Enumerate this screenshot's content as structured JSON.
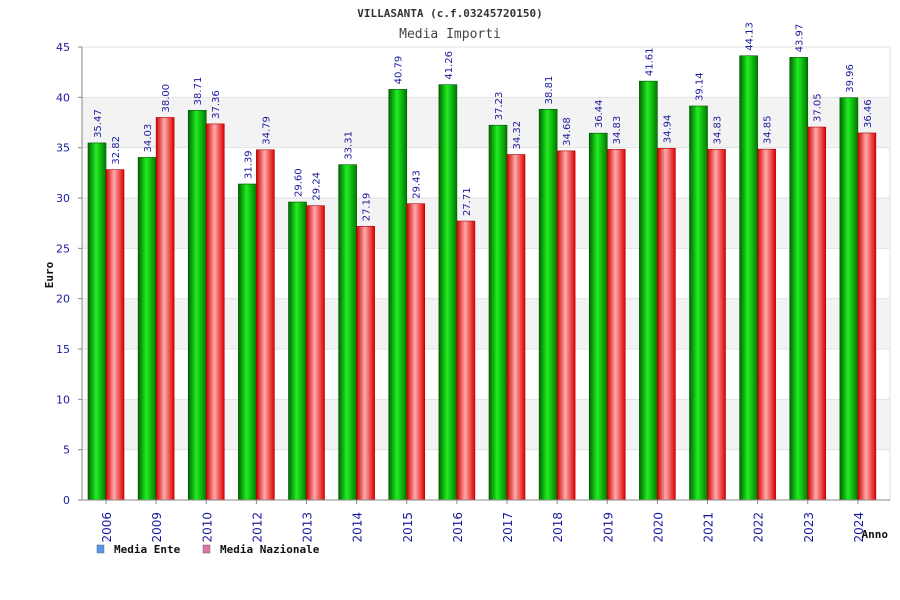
{
  "chart_data": {
    "type": "bar",
    "title": "VILLASANTA (c.f.03245720150)",
    "subtitle": "Media Importi",
    "xlabel": "Anno",
    "ylabel": "Euro",
    "ylim": [
      0,
      45
    ],
    "yticks": [
      "0",
      "5",
      "10",
      "15",
      "20",
      "25",
      "30",
      "35",
      "40",
      "45"
    ],
    "categories": [
      "2006",
      "2009",
      "2010",
      "2012",
      "2013",
      "2014",
      "2015",
      "2016",
      "2017",
      "2018",
      "2019",
      "2020",
      "2021",
      "2022",
      "2023",
      "2024"
    ],
    "series": [
      {
        "name": "Media Ente",
        "color": "#00aa00",
        "values": [
          35.47,
          34.03,
          38.71,
          31.39,
          29.6,
          33.31,
          40.79,
          41.26,
          37.23,
          38.81,
          36.44,
          41.61,
          39.14,
          44.13,
          43.97,
          39.96
        ],
        "labels": [
          "35.47",
          "34.03",
          "38.71",
          "31.39",
          "29.60",
          "33.31",
          "40.79",
          "41.26",
          "37.23",
          "38.81",
          "36.44",
          "41.61",
          "39.14",
          "44.13",
          "43.97",
          "39.96"
        ]
      },
      {
        "name": "Media Nazionale",
        "color": "#ee1111",
        "values": [
          32.82,
          38.0,
          37.36,
          34.79,
          29.24,
          27.19,
          29.43,
          27.71,
          34.32,
          34.68,
          34.83,
          34.94,
          34.83,
          34.85,
          37.05,
          36.46
        ],
        "labels": [
          "32.82",
          "38.00",
          "37.36",
          "34.79",
          "29.24",
          "27.19",
          "29.43",
          "27.71",
          "34.32",
          "34.68",
          "34.83",
          "34.94",
          "34.83",
          "34.85",
          "37.05",
          "36.46"
        ]
      }
    ],
    "legend": [
      {
        "label": "Media Ente",
        "color": "#5599ee"
      },
      {
        "label": "Media Nazionale",
        "color": "#dd77aa"
      }
    ],
    "legend_position": "bottom-left",
    "grid": true
  }
}
